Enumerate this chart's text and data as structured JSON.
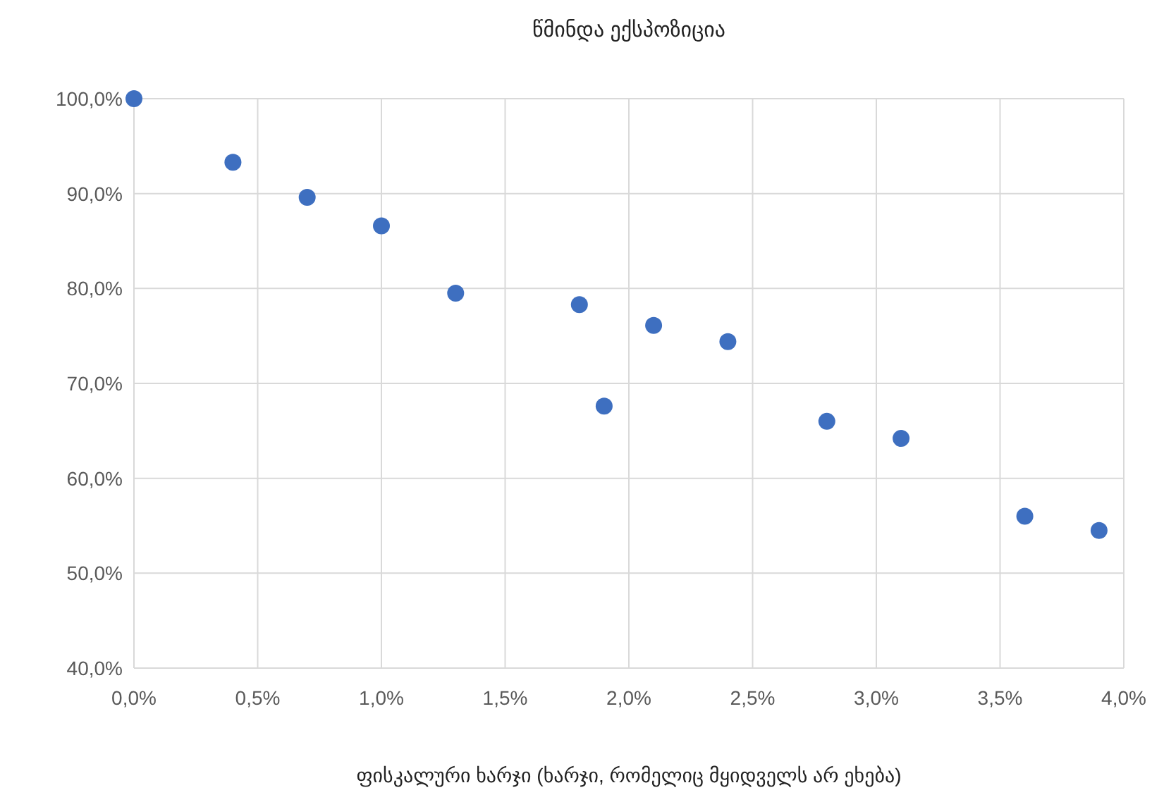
{
  "chart_data": {
    "type": "scatter",
    "title": "წმინდა ექსპოზიცია",
    "xlabel": "ფისკალური ხარჯი (ხარჯი, რომელიც მყიდველს არ ეხება)",
    "x": [
      0,
      0.4,
      0.7,
      1.0,
      1.3,
      1.8,
      1.9,
      2.1,
      2.4,
      2.8,
      3.1,
      3.6,
      3.9
    ],
    "values": [
      100,
      93.3,
      89.6,
      86.6,
      79.5,
      78.3,
      67.6,
      76.1,
      74.4,
      66.0,
      64.2,
      56.0,
      54.5
    ],
    "color": "#3e6fc0",
    "marker": "circle",
    "grid": true,
    "xlim": [
      0,
      4
    ],
    "xticks": [
      {
        "value": 0,
        "label": "0,0%"
      },
      {
        "value": 0.5,
        "label": "0,5%"
      },
      {
        "value": 1,
        "label": "1,0%"
      },
      {
        "value": 1.5,
        "label": "1,5%"
      },
      {
        "value": 2,
        "label": "2,0%"
      },
      {
        "value": 2.5,
        "label": "2,5%"
      },
      {
        "value": 3,
        "label": "3,0%"
      },
      {
        "value": 3.5,
        "label": "3,5%"
      },
      {
        "value": 4,
        "label": "4,0%"
      }
    ],
    "ylim": [
      40,
      100
    ],
    "yticks": [
      {
        "value": 40,
        "label": "40,0%"
      },
      {
        "value": 50,
        "label": "50,0%"
      },
      {
        "value": 60,
        "label": "60,0%"
      },
      {
        "value": 70,
        "label": "70,0%"
      },
      {
        "value": 80,
        "label": "80,0%"
      },
      {
        "value": 90,
        "label": "90,0%"
      },
      {
        "value": 100,
        "label": "100,0%"
      }
    ]
  }
}
